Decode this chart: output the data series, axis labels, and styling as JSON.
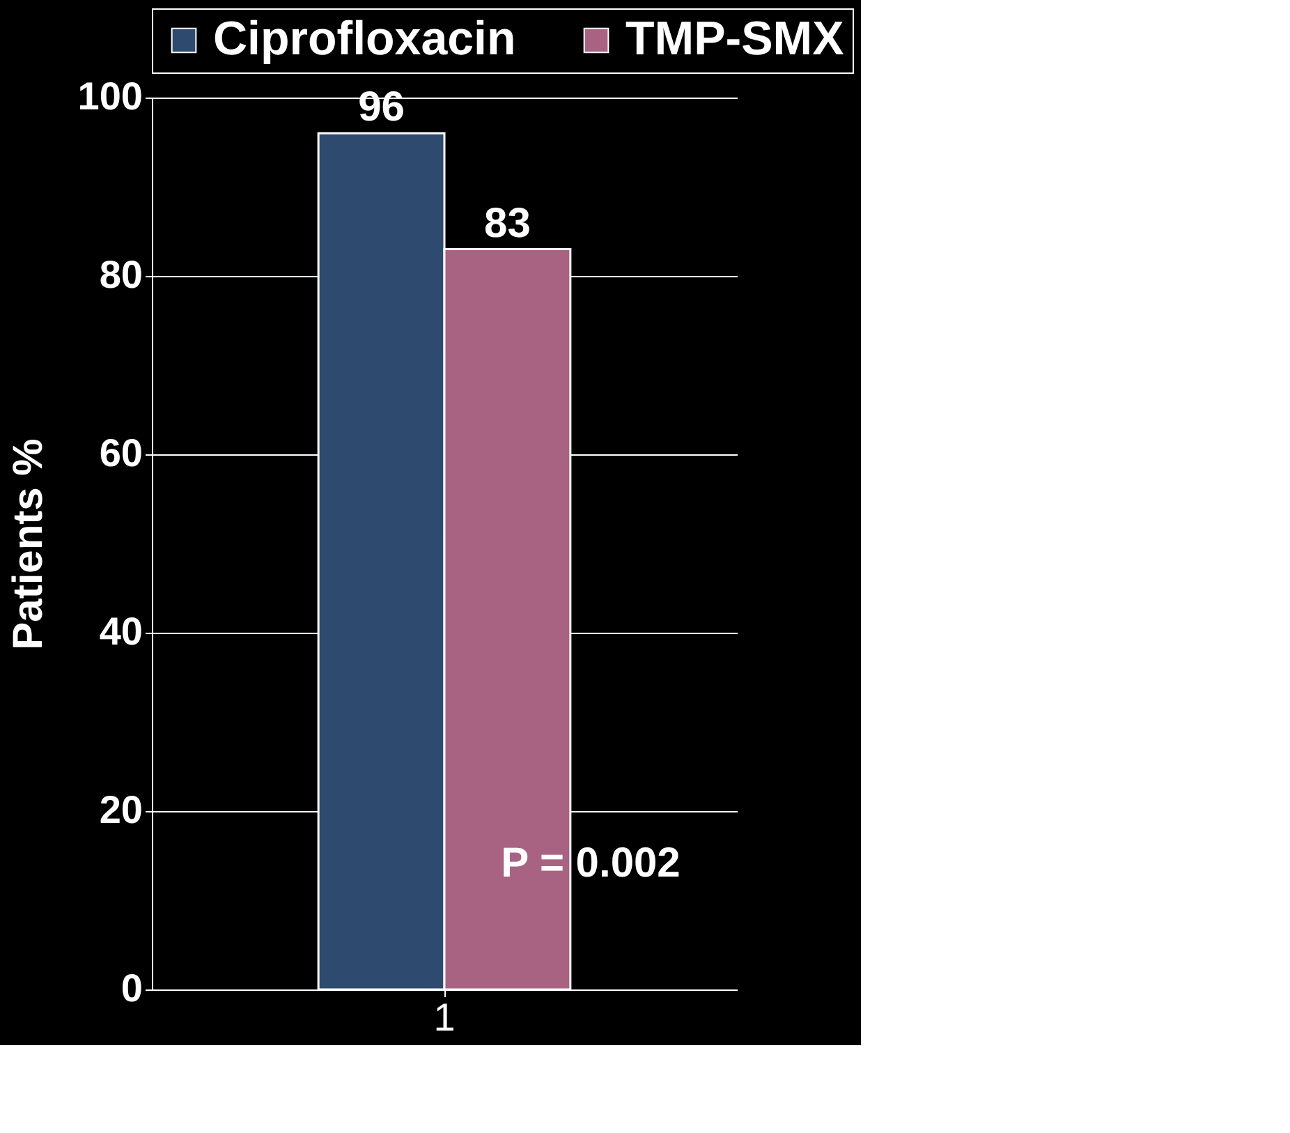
{
  "chart_data": {
    "type": "bar",
    "ylabel": "Patients %",
    "categories": [
      "1"
    ],
    "series": [
      {
        "name": "Ciprofloxacin",
        "color": "#2e4a6e",
        "values": [
          96
        ]
      },
      {
        "name": "TMP-SMX",
        "color": "#a86383",
        "values": [
          83
        ]
      }
    ],
    "ylim": [
      0,
      100
    ],
    "yticks": [
      0,
      20,
      40,
      60,
      80,
      100
    ],
    "grid": "y",
    "legend": "top",
    "data_labels": true,
    "annotations": [
      "P = 0.002"
    ]
  }
}
